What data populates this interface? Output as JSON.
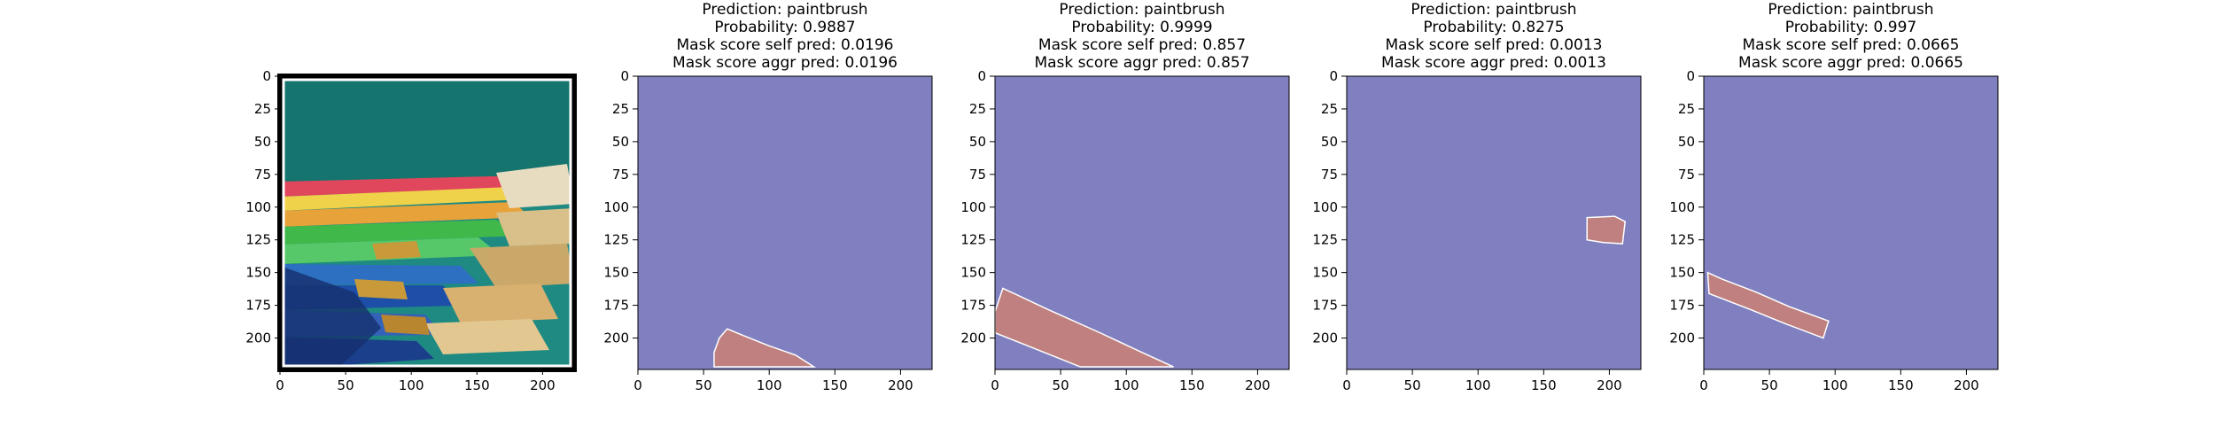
{
  "chart_data": [
    {
      "type": "image",
      "panel": 0,
      "title_lines": [],
      "content": "photo of paintbrushes",
      "xlim": [
        0,
        224
      ],
      "ylim": [
        224,
        0
      ],
      "xticks": [
        0,
        50,
        100,
        150,
        200
      ],
      "yticks": [
        0,
        25,
        50,
        75,
        100,
        125,
        150,
        175,
        200
      ],
      "photo_colors": {
        "background": "#1f8a82",
        "frame": "#ffffff",
        "border": "#000000"
      }
    },
    {
      "type": "heatmap",
      "panel": 1,
      "title_lines": [
        "Prediction: paintbrush",
        "Probability: 0.9887",
        "Mask score self pred: 0.0196",
        "Mask score aggr pred: 0.0196"
      ],
      "xlim": [
        0,
        224
      ],
      "ylim": [
        224,
        0
      ],
      "xticks": [
        0,
        50,
        100,
        150,
        200
      ],
      "yticks": [
        0,
        25,
        50,
        75,
        100,
        125,
        150,
        175,
        200
      ],
      "colors": {
        "background": "#8080c0",
        "mask": "#c08080"
      },
      "mask_polygon": [
        [
          58,
          222
        ],
        [
          58,
          211
        ],
        [
          62,
          200
        ],
        [
          68,
          193
        ],
        [
          80,
          198
        ],
        [
          100,
          206
        ],
        [
          120,
          213
        ],
        [
          134,
          222
        ]
      ]
    },
    {
      "type": "heatmap",
      "panel": 2,
      "title_lines": [
        "Prediction: paintbrush",
        "Probability: 0.9999",
        "Mask score self pred: 0.857",
        "Mask score aggr pred: 0.857"
      ],
      "xlim": [
        0,
        224
      ],
      "ylim": [
        224,
        0
      ],
      "xticks": [
        0,
        50,
        100,
        150,
        200
      ],
      "yticks": [
        0,
        25,
        50,
        75,
        100,
        125,
        150,
        175,
        200
      ],
      "colors": {
        "background": "#8080c0",
        "mask": "#c08080"
      },
      "mask_polygon": [
        [
          0,
          180
        ],
        [
          6,
          162
        ],
        [
          40,
          178
        ],
        [
          80,
          196
        ],
        [
          112,
          211
        ],
        [
          136,
          222
        ],
        [
          65,
          222
        ],
        [
          30,
          208
        ],
        [
          0,
          196
        ]
      ]
    },
    {
      "type": "heatmap",
      "panel": 3,
      "title_lines": [
        "Prediction: paintbrush",
        "Probability: 0.8275",
        "Mask score self pred: 0.0013",
        "Mask score aggr pred: 0.0013"
      ],
      "xlim": [
        0,
        224
      ],
      "ylim": [
        224,
        0
      ],
      "xticks": [
        0,
        50,
        100,
        150,
        200
      ],
      "yticks": [
        0,
        25,
        50,
        75,
        100,
        125,
        150,
        175,
        200
      ],
      "colors": {
        "background": "#8080c0",
        "mask": "#c08080"
      },
      "mask_polygon": [
        [
          183,
          108
        ],
        [
          204,
          107
        ],
        [
          212,
          111
        ],
        [
          210,
          128
        ],
        [
          195,
          127
        ],
        [
          183,
          125
        ]
      ]
    },
    {
      "type": "heatmap",
      "panel": 4,
      "title_lines": [
        "Prediction: paintbrush",
        "Probability: 0.997",
        "Mask score self pred: 0.0665",
        "Mask score aggr pred: 0.0665"
      ],
      "xlim": [
        0,
        224
      ],
      "ylim": [
        224,
        0
      ],
      "xticks": [
        0,
        50,
        100,
        150,
        200
      ],
      "yticks": [
        0,
        25,
        50,
        75,
        100,
        125,
        150,
        175,
        200
      ],
      "colors": {
        "background": "#8080c0",
        "mask": "#c08080"
      },
      "mask_polygon": [
        [
          3,
          150
        ],
        [
          14,
          155
        ],
        [
          40,
          165
        ],
        [
          65,
          176
        ],
        [
          95,
          187
        ],
        [
          91,
          200
        ],
        [
          62,
          189
        ],
        [
          35,
          178
        ],
        [
          4,
          166
        ]
      ]
    }
  ]
}
